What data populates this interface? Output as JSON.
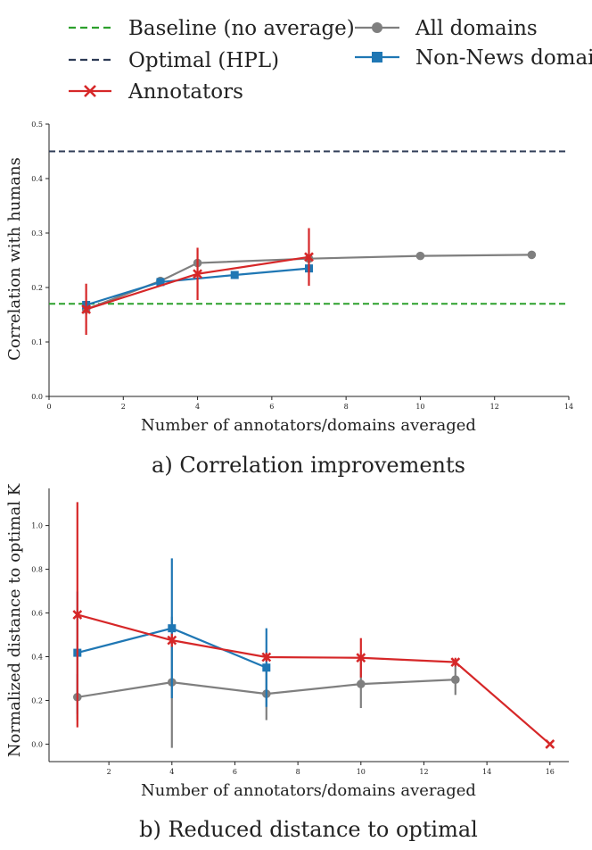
{
  "legend": {
    "entries": [
      {
        "label": "Baseline (no average)",
        "color": "#2ca02c",
        "style": "dashed"
      },
      {
        "label": "Optimal (HPL)",
        "color": "#2d3a55",
        "style": "dashed"
      },
      {
        "label": "Annotators",
        "color": "#d62728",
        "marker": "x"
      },
      {
        "label": "All domains",
        "color": "#7f7f7f",
        "marker": "circle"
      },
      {
        "label": "Non-News domains",
        "color": "#1f77b4",
        "marker": "square"
      }
    ]
  },
  "chart_data": [
    {
      "type": "line",
      "caption": "a) Correlation improvements",
      "xlabel": "Number of annotators/domains averaged",
      "ylabel": "Correlation with humans",
      "xlim": [
        0,
        14
      ],
      "ylim": [
        0,
        0.5
      ],
      "xticks": [
        0,
        2,
        4,
        6,
        8,
        10,
        12,
        14
      ],
      "yticks": [
        0.0,
        0.1,
        0.2,
        0.3,
        0.4,
        0.5
      ],
      "xtick_labels": [
        "0",
        "2",
        "4",
        "6",
        "8",
        "10",
        "12",
        "14"
      ],
      "ytick_labels": [
        "0.0",
        "0.1",
        "0.2",
        "0.3",
        "0.4",
        "0.5"
      ],
      "hlines": [
        {
          "name": "Baseline (no average)",
          "y": 0.17,
          "color": "#2ca02c"
        },
        {
          "name": "Optimal (HPL)",
          "y": 0.45,
          "color": "#2d3a55"
        }
      ],
      "series": [
        {
          "name": "All domains",
          "color": "#7f7f7f",
          "marker": "circle",
          "x": [
            1,
            3,
            4,
            7,
            10,
            13
          ],
          "y": [
            0.16,
            0.212,
            0.245,
            0.253,
            0.258,
            0.26
          ],
          "err": [
            0.01,
            0.005,
            0.005,
            0.005,
            0.005,
            0.005
          ]
        },
        {
          "name": "Non-News domains",
          "color": "#1f77b4",
          "marker": "square",
          "x": [
            1,
            3,
            5,
            7
          ],
          "y": [
            0.168,
            0.21,
            0.223,
            0.235
          ],
          "err": [
            0.005,
            0.004,
            0.007,
            0.006
          ]
        },
        {
          "name": "Annotators",
          "color": "#d62728",
          "marker": "x",
          "x": [
            1,
            4,
            7
          ],
          "y": [
            0.16,
            0.225,
            0.256
          ],
          "err": [
            0.047,
            0.048,
            0.053
          ]
        }
      ]
    },
    {
      "type": "line",
      "caption": "b) Reduced distance to optimal",
      "xlabel": "Number of annotators/domains averaged",
      "ylabel": "Normalized distance to optimal K",
      "xlim": [
        0.1,
        16.6
      ],
      "ylim": [
        -0.08,
        1.17
      ],
      "xticks": [
        2,
        4,
        6,
        8,
        10,
        12,
        14,
        16
      ],
      "yticks": [
        0.0,
        0.2,
        0.4,
        0.6,
        0.8,
        1.0
      ],
      "xtick_labels": [
        "2",
        "4",
        "6",
        "8",
        "10",
        "12",
        "14",
        "16"
      ],
      "ytick_labels": [
        "0.0",
        "0.2",
        "0.4",
        "0.6",
        "0.8",
        "1.0"
      ],
      "series": [
        {
          "name": "All domains",
          "color": "#7f7f7f",
          "marker": "circle",
          "x": [
            1,
            4,
            7,
            10,
            13
          ],
          "y": [
            0.215,
            0.283,
            0.23,
            0.275,
            0.295
          ],
          "err": [
            0.105,
            0.3,
            0.12,
            0.11,
            0.07
          ]
        },
        {
          "name": "Non-News domains",
          "color": "#1f77b4",
          "marker": "square",
          "x": [
            1,
            4,
            7
          ],
          "y": [
            0.418,
            0.53,
            0.35
          ],
          "err": [
            0.28,
            0.32,
            0.18
          ]
        },
        {
          "name": "Annotators",
          "color": "#d62728",
          "marker": "x",
          "x": [
            1,
            4,
            7,
            10,
            13,
            16
          ],
          "y": [
            0.592,
            0.475,
            0.398,
            0.395,
            0.375,
            0.0
          ],
          "err": [
            0.515,
            0.03,
            0.02,
            0.09,
            0.02,
            0.0
          ]
        }
      ]
    }
  ]
}
